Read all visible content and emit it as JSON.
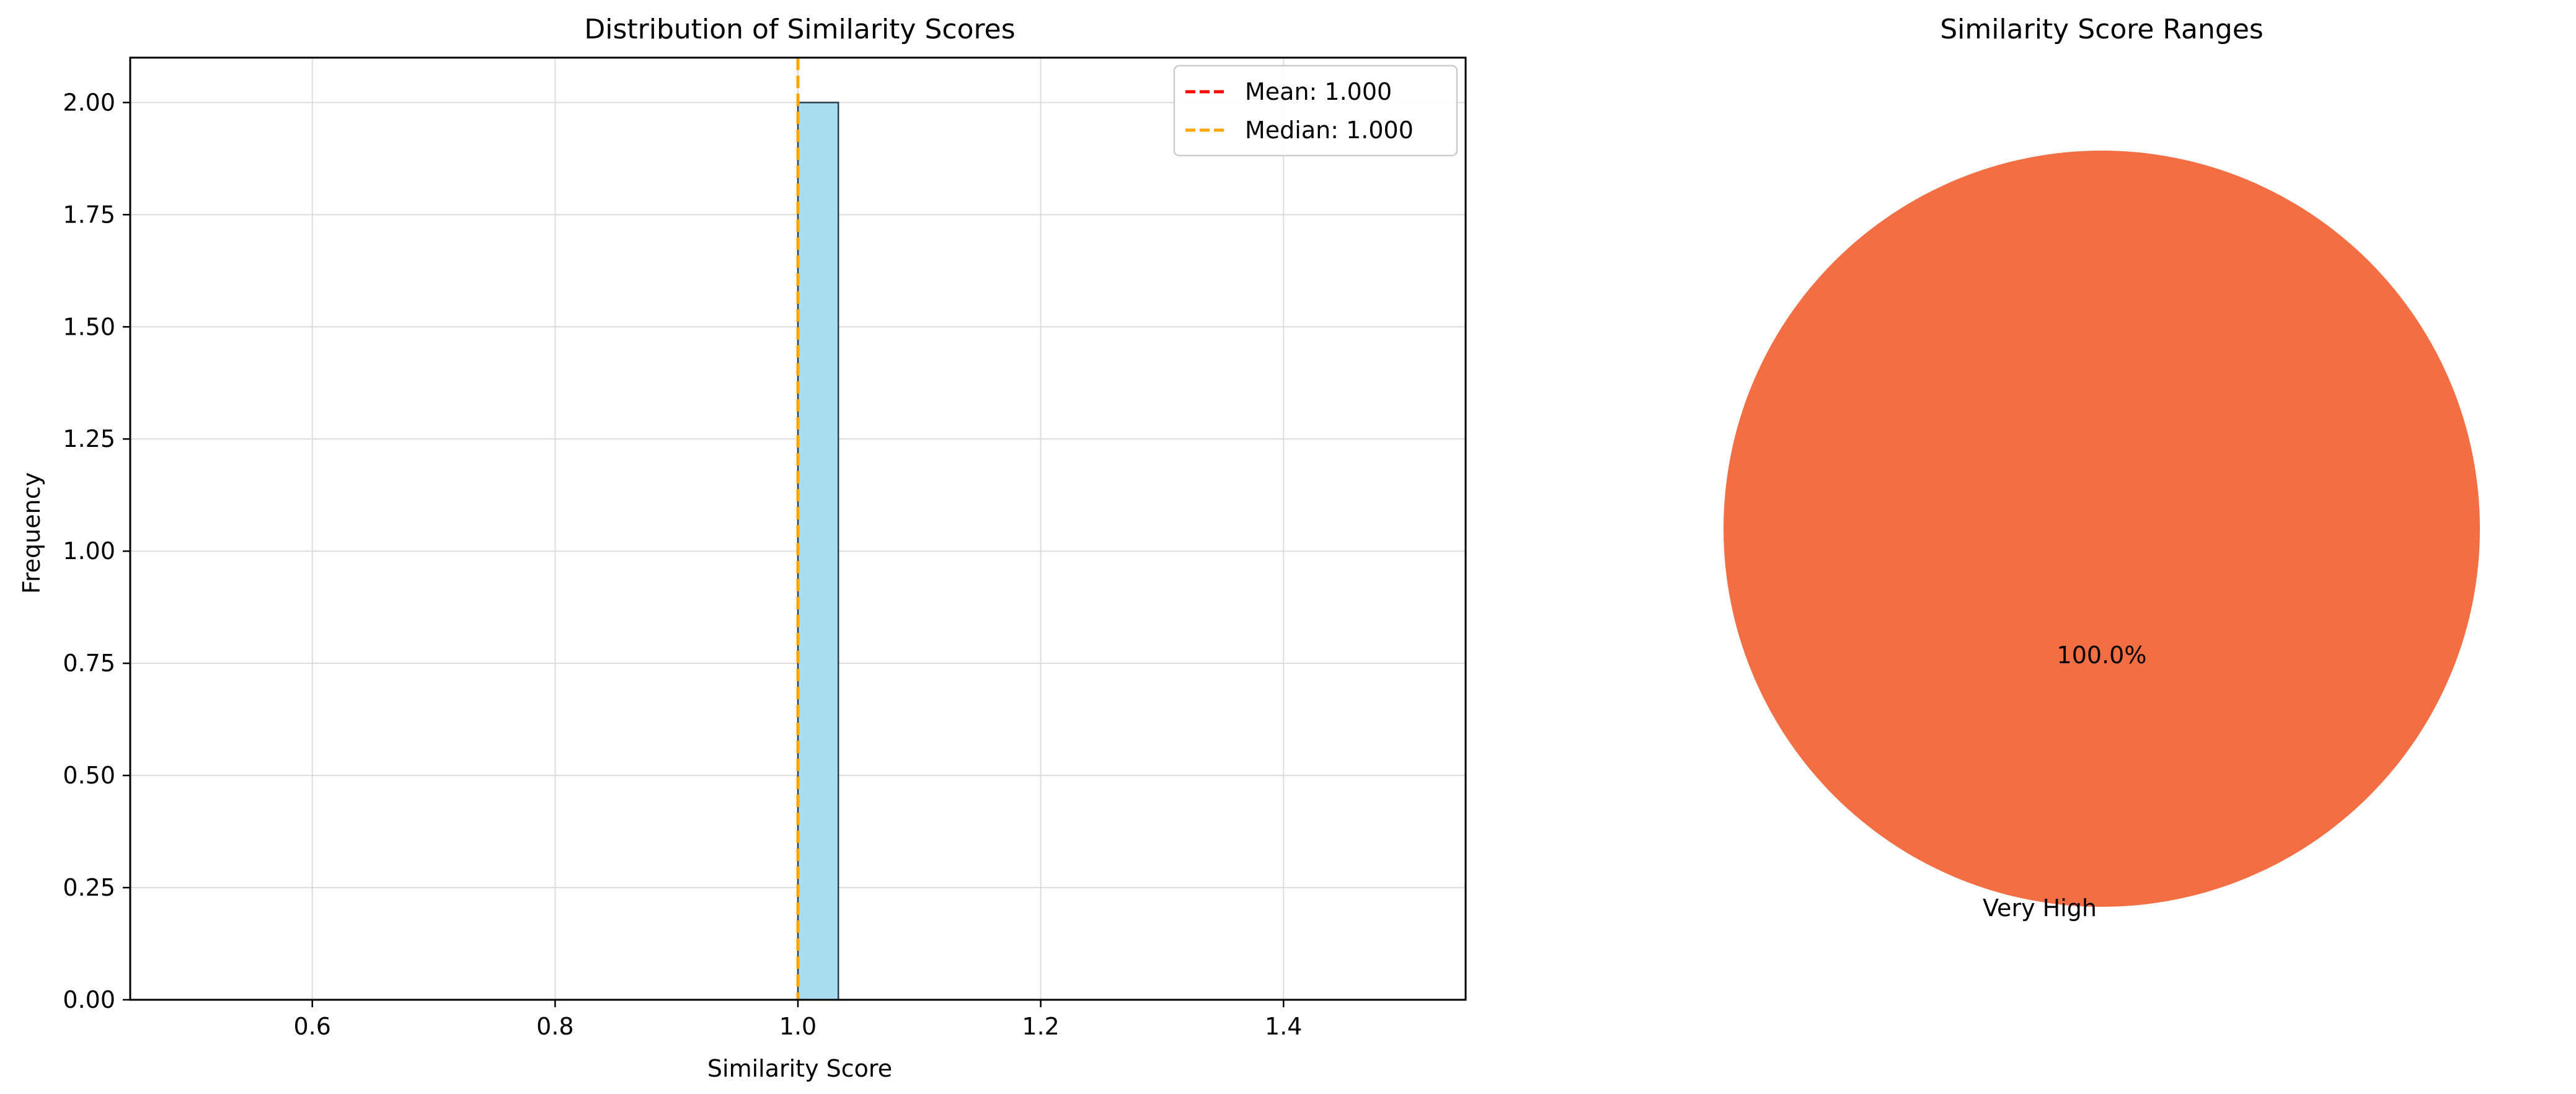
{
  "chart_data": [
    {
      "type": "bar",
      "title": "Distribution of Similarity Scores",
      "xlabel": "Similarity Score",
      "ylabel": "Frequency",
      "xlim": [
        0.45,
        1.55
      ],
      "ylim": [
        0,
        2.1
      ],
      "grid": true,
      "x_ticks": [
        0.6,
        0.8,
        1.0,
        1.2,
        1.4
      ],
      "x_tick_labels": [
        "0.6",
        "0.8",
        "1.0",
        "1.2",
        "1.4"
      ],
      "y_ticks": [
        0,
        0.25,
        0.5,
        0.75,
        1.0,
        1.25,
        1.5,
        1.75,
        2.0
      ],
      "y_tick_labels": [
        "0.00",
        "0.25",
        "0.50",
        "0.75",
        "1.00",
        "1.25",
        "1.50",
        "1.75",
        "2.00"
      ],
      "bins": [
        {
          "x0": 1.0,
          "x1": 1.0333,
          "count": 2
        }
      ],
      "baseline": {
        "x0": 0.5,
        "x1": 1.5,
        "value": 0
      },
      "bar_color": "#a8dcef",
      "bar_edge_color": "#2b3d4f",
      "reference_lines": [
        {
          "label": "Mean: 1.000",
          "value": 1.0,
          "color": "#ff0000",
          "style": "dashed"
        },
        {
          "label": "Median: 1.000",
          "value": 1.0,
          "color": "#ffa500",
          "style": "dashed"
        }
      ],
      "legend_position": "top-right"
    },
    {
      "type": "pie",
      "title": "Similarity Score Ranges",
      "slices": [
        {
          "label": "Very High",
          "value": 100.0,
          "pct_label": "100.0%",
          "color": "#f46e43"
        }
      ]
    }
  ]
}
